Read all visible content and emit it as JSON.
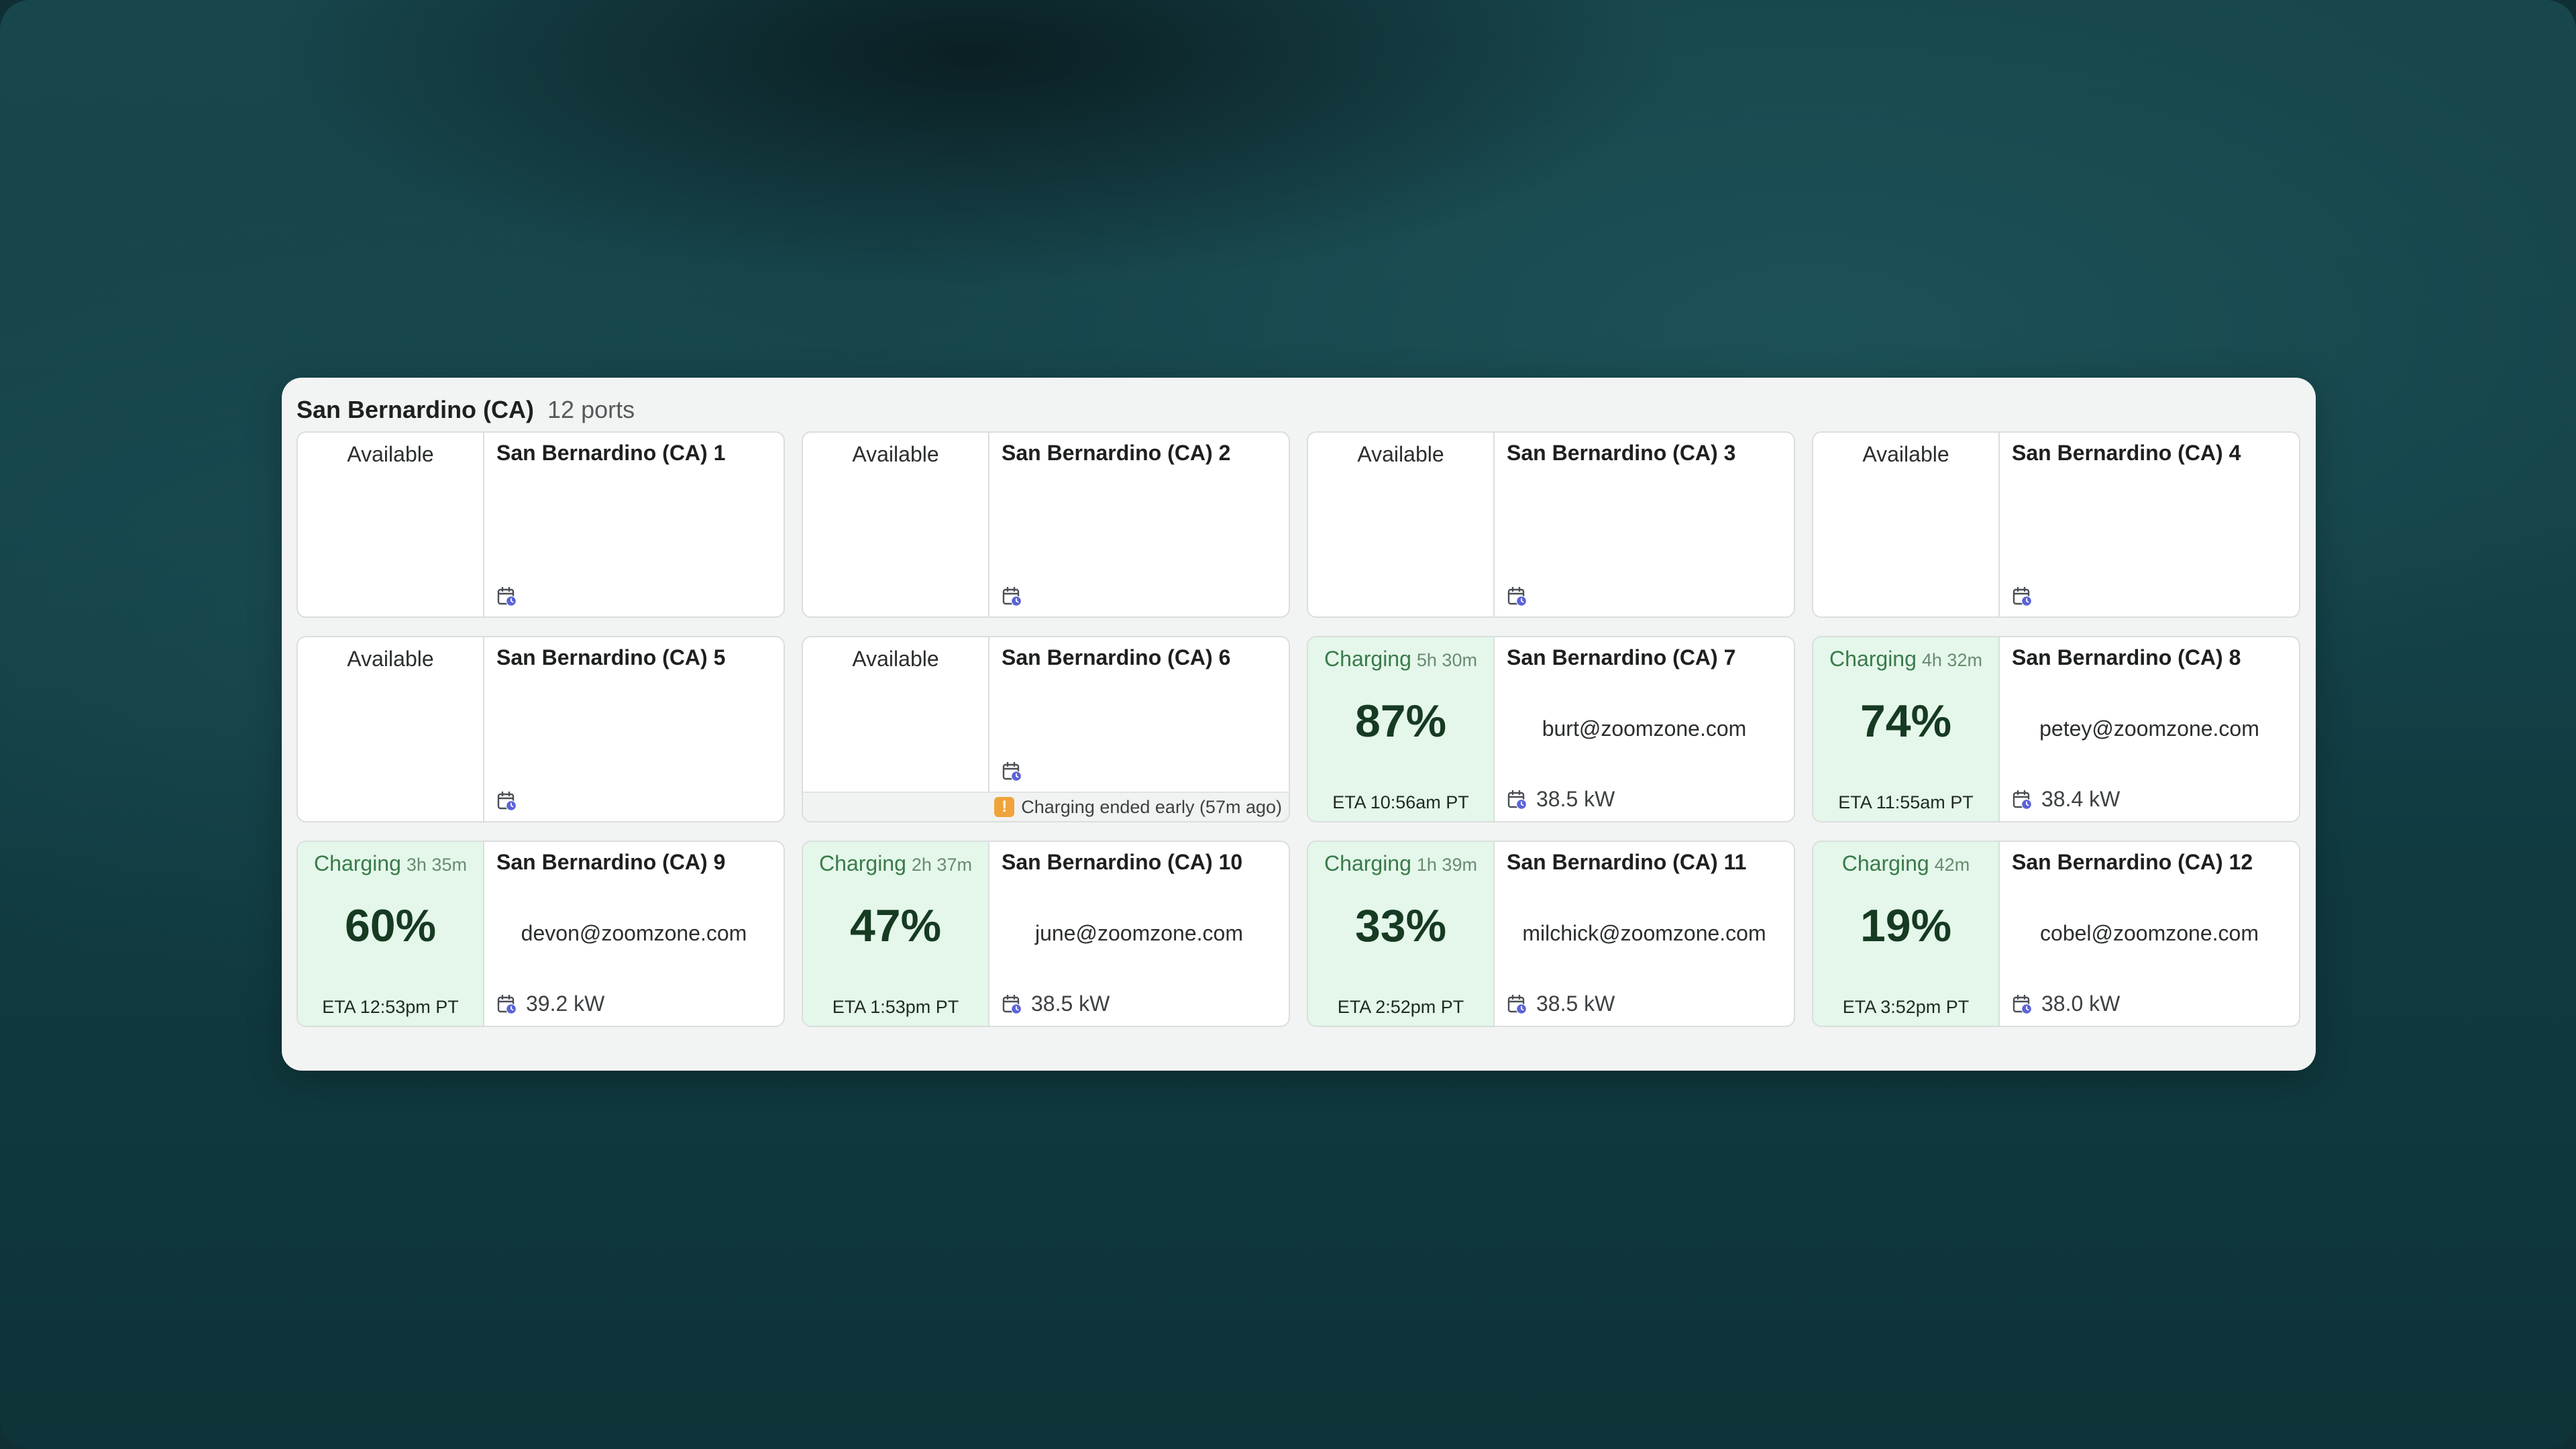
{
  "site": {
    "name": "San Bernardino (CA)",
    "port_count": "12 ports"
  },
  "colors": {
    "charging_bg": "#e4f7ea",
    "charging_text": "#3a7a4a",
    "schedule_icon": "#5b63d8",
    "warning": "#f0a33a"
  },
  "ports": [
    {
      "name": "San Bernardino (CA) 1",
      "status": "available",
      "status_label": "Available",
      "icon": "calendar-schedule-icon"
    },
    {
      "name": "San Bernardino (CA) 2",
      "status": "available",
      "status_label": "Available",
      "icon": "calendar-schedule-icon"
    },
    {
      "name": "San Bernardino (CA) 3",
      "status": "available",
      "status_label": "Available",
      "icon": "calendar-schedule-icon"
    },
    {
      "name": "San Bernardino (CA) 4",
      "status": "available",
      "status_label": "Available",
      "icon": "calendar-schedule-icon"
    },
    {
      "name": "San Bernardino (CA) 5",
      "status": "available",
      "status_label": "Available",
      "icon": "calendar-schedule-icon"
    },
    {
      "name": "San Bernardino (CA) 6",
      "status": "available",
      "status_label": "Available",
      "icon": "calendar-schedule-icon",
      "warning": "Charging ended early (57m ago)",
      "warning_icon": "exclamation-icon"
    },
    {
      "name": "San Bernardino (CA) 7",
      "status": "charging",
      "status_label": "Charging",
      "elapsed": "5h 30m",
      "percent": "87%",
      "eta": "ETA 10:56am PT",
      "user": "burt@zoomzone.com",
      "power": "38.5 kW",
      "icon": "calendar-schedule-icon"
    },
    {
      "name": "San Bernardino (CA) 8",
      "status": "charging",
      "status_label": "Charging",
      "elapsed": "4h 32m",
      "percent": "74%",
      "eta": "ETA 11:55am PT",
      "user": "petey@zoomzone.com",
      "power": "38.4 kW",
      "icon": "calendar-schedule-icon"
    },
    {
      "name": "San Bernardino (CA) 9",
      "status": "charging",
      "status_label": "Charging",
      "elapsed": "3h 35m",
      "percent": "60%",
      "eta": "ETA 12:53pm PT",
      "user": "devon@zoomzone.com",
      "power": "39.2 kW",
      "icon": "calendar-schedule-icon"
    },
    {
      "name": "San Bernardino (CA) 10",
      "status": "charging",
      "status_label": "Charging",
      "elapsed": "2h 37m",
      "percent": "47%",
      "eta": "ETA 1:53pm PT",
      "user": "june@zoomzone.com",
      "power": "38.5 kW",
      "icon": "calendar-schedule-icon"
    },
    {
      "name": "San Bernardino (CA) 11",
      "status": "charging",
      "status_label": "Charging",
      "elapsed": "1h 39m",
      "percent": "33%",
      "eta": "ETA 2:52pm PT",
      "user": "milchick@zoomzone.com",
      "power": "38.5 kW",
      "icon": "calendar-schedule-icon"
    },
    {
      "name": "San Bernardino (CA) 12",
      "status": "charging",
      "status_label": "Charging",
      "elapsed": "42m",
      "percent": "19%",
      "eta": "ETA 3:52pm PT",
      "user": "cobel@zoomzone.com",
      "power": "38.0 kW",
      "icon": "calendar-schedule-icon"
    }
  ]
}
